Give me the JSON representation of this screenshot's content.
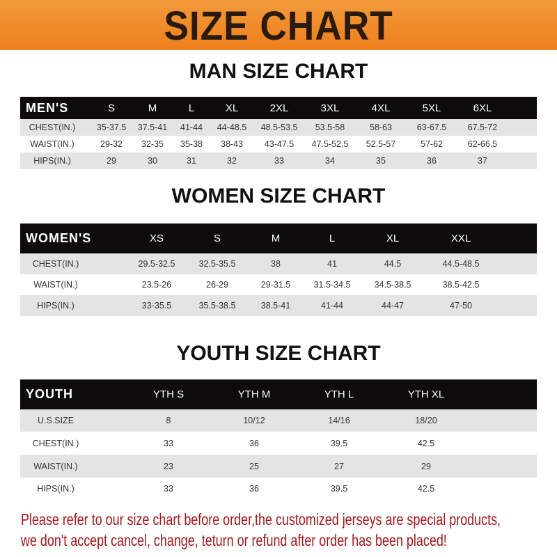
{
  "header": {
    "title": "SIZE CHART",
    "color": "#ec7f1c"
  },
  "men": {
    "title": "MAN SIZE CHART",
    "columns": [
      "MEN'S",
      "S",
      "M",
      "L",
      "XL",
      "2XL",
      "3XL",
      "4XL",
      "5XL",
      "6XL"
    ],
    "rows": [
      [
        "CHEST(IN.)",
        "35-37.5",
        "37.5-41",
        "41-44",
        "44-48.5",
        "48.5-53.5",
        "53.5-58",
        "58-63",
        "63-67.5",
        "67.5-72"
      ],
      [
        "WAIST(IN.)",
        "29-32",
        "32-35",
        "35-38",
        "38-43",
        "43-47.5",
        "47.5-52.5",
        "52.5-57",
        "57-62",
        "62-66.5"
      ],
      [
        "HIPS(IN.)",
        "29",
        "30",
        "31",
        "32",
        "33",
        "34",
        "35",
        "36",
        "37"
      ]
    ]
  },
  "women": {
    "title": "WOMEN SIZE CHART",
    "columns": [
      "WOMEN'S",
      "XS",
      "S",
      "M",
      "L",
      "XL",
      "XXL"
    ],
    "rows": [
      [
        "CHEST(IN.)",
        "29.5-32.5",
        "32.5-35.5",
        "38",
        "41",
        "44.5",
        "44.5-48.5"
      ],
      [
        "WAIST(IN.)",
        "23.5-26",
        "26-29",
        "29-31.5",
        "31.5-34.5",
        "34.5-38.5",
        "38.5-42.5"
      ],
      [
        "HIPS(IN.)",
        "33-35.5",
        "35.5-38.5",
        "38.5-41",
        "41-44",
        "44-47",
        "47-50"
      ]
    ]
  },
  "youth": {
    "title": "YOUTH SIZE CHART",
    "columns": [
      "YOUTH",
      "YTH S",
      "YTH M",
      "YTH L",
      "YTH XL"
    ],
    "rows": [
      [
        "U.S.SIZE",
        "8",
        "10/12",
        "14/16",
        "18/20"
      ],
      [
        "CHEST(IN.)",
        "33",
        "36",
        "39.5",
        "42.5"
      ],
      [
        "WAIST(IN.)",
        "23",
        "25",
        "27",
        "29"
      ],
      [
        "HIPS(IN.)",
        "33",
        "36",
        "39.5",
        "42.5"
      ]
    ]
  },
  "notice": {
    "line1": "Please refer to our size chart before order,the customized jerseys are special products,",
    "line2": "we don't accept cancel, change, teturn or refund after order has been placed!",
    "color": "#a3171b"
  }
}
